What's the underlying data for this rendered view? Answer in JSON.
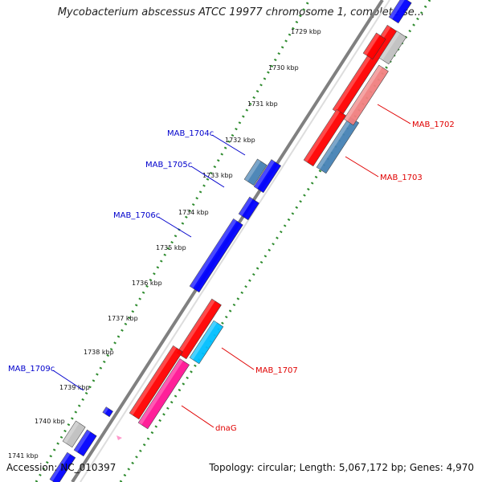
{
  "header": {
    "title": "Mycobacterium abscessus ATCC 19977 chromosome 1, complete se..."
  },
  "footer": {
    "accession": "Accession: NC_010397",
    "summary": "Topology: circular; Length: 5,067,172 bp; Genes: 4,970"
  },
  "ticks": [
    {
      "label": "1729 kbp"
    },
    {
      "label": "1730 kbp"
    },
    {
      "label": "1731 kbp"
    },
    {
      "label": "1732 kbp"
    },
    {
      "label": "1733 kbp"
    },
    {
      "label": "1734 kbp"
    },
    {
      "label": "1735 kbp"
    },
    {
      "label": "1736 kbp"
    },
    {
      "label": "1737 kbp"
    },
    {
      "label": "1738 kbp"
    },
    {
      "label": "1739 kbp"
    },
    {
      "label": "1740 kbp"
    },
    {
      "label": "1741 kbp"
    }
  ],
  "gene_labels": [
    {
      "name": "MAB_1702",
      "color": "#e00000"
    },
    {
      "name": "MAB_1703",
      "color": "#e00000"
    },
    {
      "name": "MAB_1704c",
      "color": "#0000cc"
    },
    {
      "name": "MAB_1705c",
      "color": "#0000cc"
    },
    {
      "name": "MAB_1706c",
      "color": "#0000cc"
    },
    {
      "name": "MAB_1707",
      "color": "#e00000"
    },
    {
      "name": "dnaG",
      "color": "#e00000"
    },
    {
      "name": "MAB_1709c",
      "color": "#0000cc"
    }
  ],
  "colors": {
    "forward_cds": "#ff0000",
    "reverse_cds": "#0000ff",
    "light_red": "#f08080",
    "steel_blue": "#4682b4",
    "cyan": "#00bfff",
    "pink": "#ff1493",
    "grey": "#c0c0c0",
    "backbone": "#808080",
    "tick_green": "#2e8b2e"
  }
}
